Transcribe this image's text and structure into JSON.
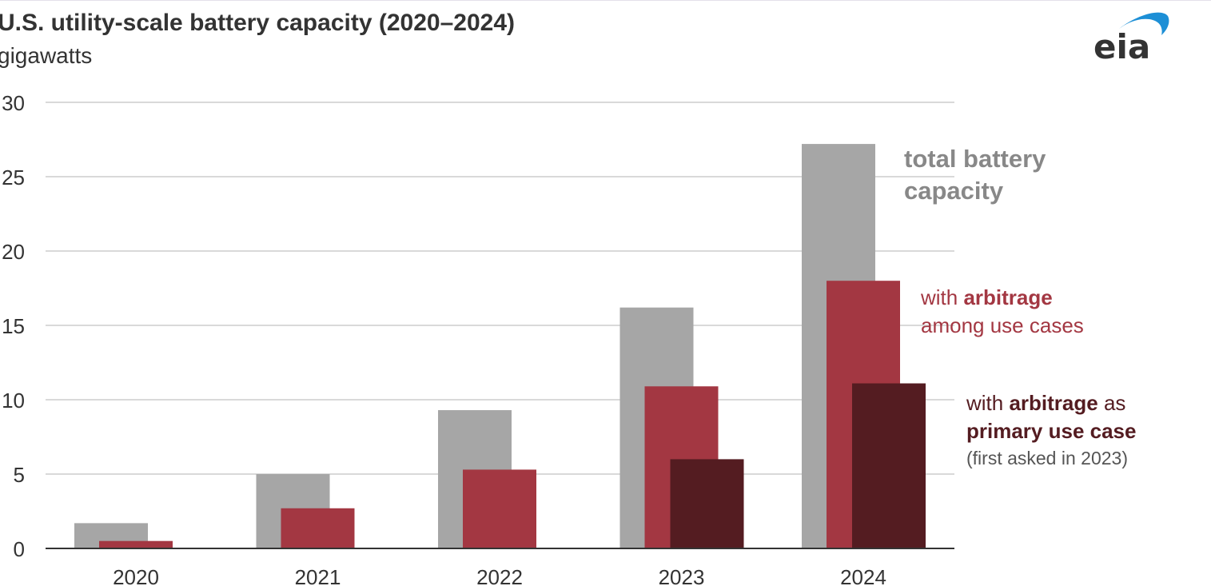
{
  "chart_data": {
    "type": "bar",
    "title": "U.S. utility-scale battery capacity (2020–2024)",
    "ylabel": "gigawatts",
    "categories": [
      "2020",
      "2021",
      "2022",
      "2023",
      "2024"
    ],
    "ylim": [
      0,
      30
    ],
    "yticks": [
      "0",
      "5",
      "10",
      "15",
      "20",
      "25",
      "30"
    ],
    "grid": true,
    "series": [
      {
        "name": "total battery capacity",
        "color": "#a6a6a6",
        "values": [
          1.7,
          5.0,
          9.3,
          16.2,
          27.2
        ]
      },
      {
        "name": "with arbitrage among use cases",
        "color": "#a33742",
        "values": [
          0.5,
          2.7,
          5.3,
          10.9,
          18.0
        ]
      },
      {
        "name": "with arbitrage as primary use case (first asked in 2023)",
        "color": "#541c21",
        "values": [
          null,
          null,
          null,
          6.0,
          11.1
        ]
      }
    ],
    "annotations": {
      "total": [
        "total battery",
        "capacity"
      ],
      "arbitrage_prefix": "with ",
      "arbitrage_bold": "arbitrage",
      "arbitrage_line2": "among use cases",
      "primary_prefix": "with ",
      "primary_bold": "arbitrage",
      "primary_suffix": " as",
      "primary_line2": "primary use case",
      "primary_note": "(first asked in 2023)"
    }
  },
  "logo": {
    "text": "eia",
    "arc_color": "#1d8fd6"
  }
}
